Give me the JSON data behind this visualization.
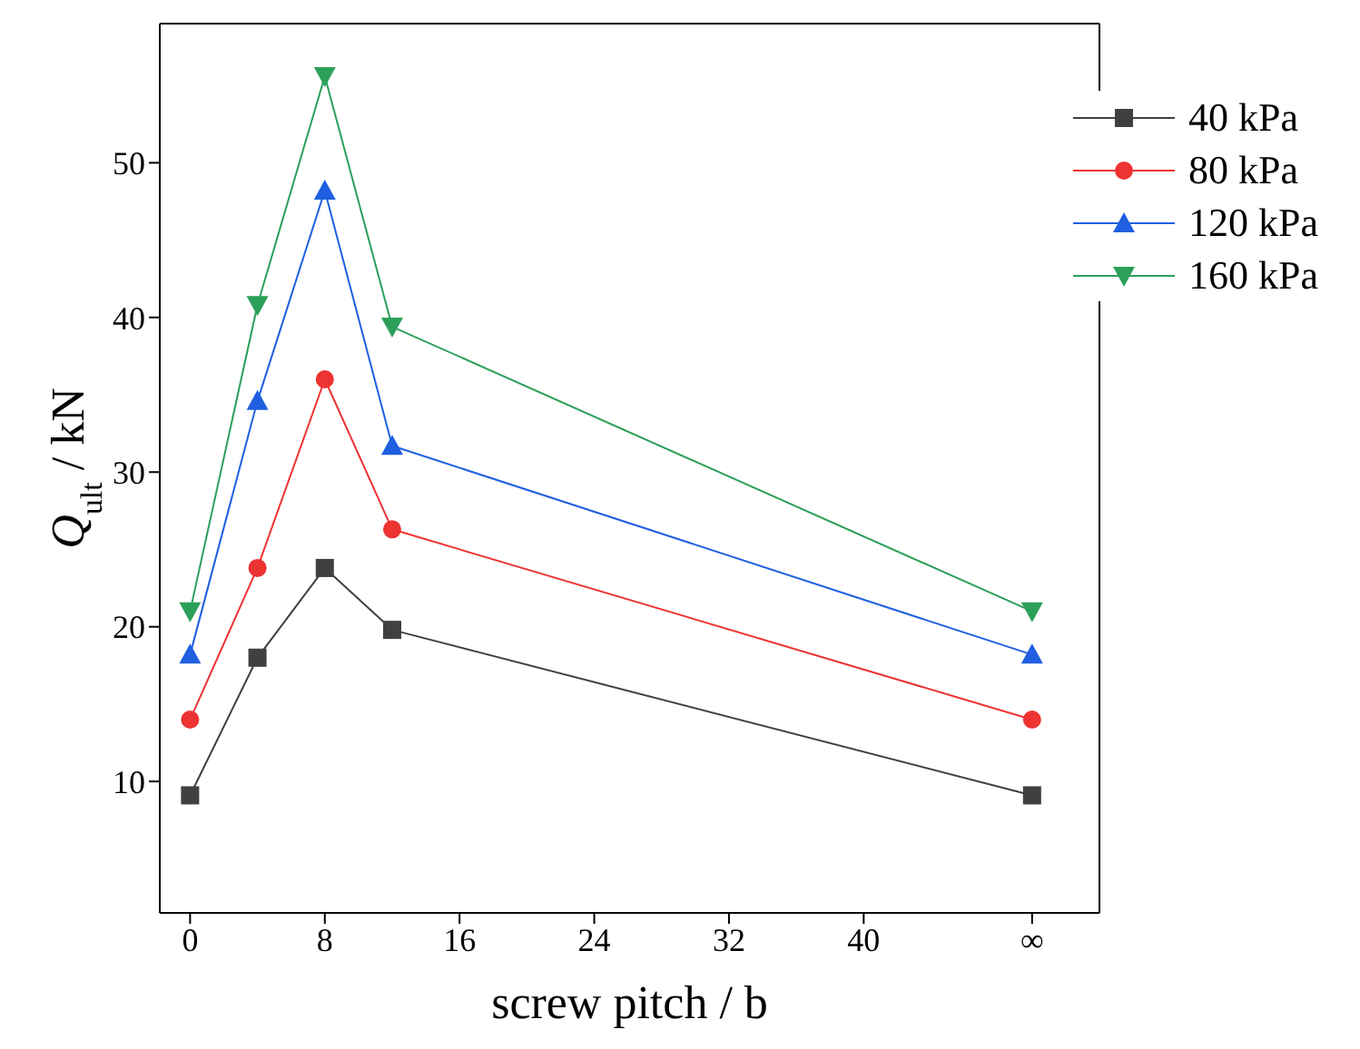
{
  "chart_data": {
    "type": "line",
    "xlabel": "screw pitch / b",
    "ylabel": "Q$_{ult}$ / kN",
    "x": [
      0,
      4,
      8,
      12,
      50
    ],
    "series": [
      {
        "name": "40 kPa",
        "color": "#404040",
        "marker": "square",
        "values": [
          9.1,
          18.0,
          23.8,
          19.8,
          9.1
        ]
      },
      {
        "name": "80 kPa",
        "color": "#ee3333",
        "marker": "circle",
        "values": [
          14.0,
          23.8,
          36.0,
          26.3,
          14.0
        ]
      },
      {
        "name": "120 kPa",
        "color": "#1f5fe0",
        "marker": "triangle",
        "values": [
          18.2,
          34.6,
          48.2,
          31.7,
          18.2
        ]
      },
      {
        "name": "160 kPa",
        "color": "#2ca05a",
        "marker": "triangle-down",
        "values": [
          21.0,
          40.8,
          55.6,
          39.4,
          21.0
        ]
      }
    ],
    "xlim": [
      -1.8,
      54
    ],
    "xticks": [
      0,
      8,
      16,
      24,
      32,
      40,
      {
        "value": 50,
        "label": "∞"
      }
    ],
    "ylim": [
      1.5,
      59
    ],
    "yticks": [
      10,
      20,
      30,
      40,
      50
    ],
    "grid": false,
    "legend": "top right"
  }
}
